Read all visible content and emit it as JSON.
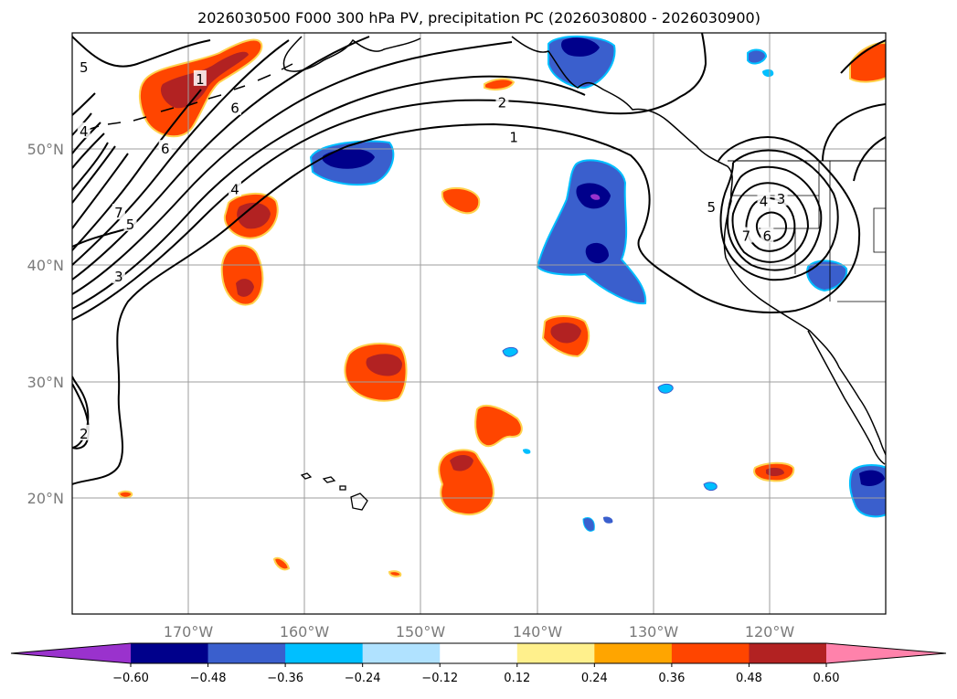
{
  "title": "2026030500 F000 300 hPa PV, precipitation PC (2026030800 - 2026030900)",
  "map": {
    "lat_labels": [
      "50°N",
      "40°N",
      "30°N",
      "20°N"
    ],
    "lon_labels": [
      "170°W",
      "160°W",
      "150°W",
      "140°W",
      "130°W",
      "120°W"
    ],
    "lon_range": [
      -180,
      -110
    ],
    "lat_range": [
      10,
      60
    ]
  },
  "colorbar": {
    "tick_labels": [
      "−0.60",
      "−0.48",
      "−0.36",
      "−0.24",
      "−0.12",
      "0.12",
      "0.24",
      "0.36",
      "0.48",
      "0.60"
    ],
    "colors": [
      "#9a32cd",
      "#00008b",
      "#3a5fcd",
      "#00bfff",
      "#b0e2ff",
      "#ffffff",
      "#fff08c",
      "#ffa500",
      "#ff4500",
      "#b22222",
      "#ff82ab"
    ]
  },
  "contour_labels": [
    {
      "text": "1",
      "lon": -142,
      "lat": 51
    },
    {
      "text": "2",
      "lon": -143,
      "lat": 54
    },
    {
      "text": "1",
      "lon": -169,
      "lat": 56
    },
    {
      "text": "6",
      "lon": -166,
      "lat": 53.5
    },
    {
      "text": "6",
      "lon": -172,
      "lat": 50
    },
    {
      "text": "5",
      "lon": -179,
      "lat": 57
    },
    {
      "text": "4",
      "lon": -179,
      "lat": 51.5
    },
    {
      "text": "4",
      "lon": -166,
      "lat": 46.5
    },
    {
      "text": "7",
      "lon": -176,
      "lat": 44.5
    },
    {
      "text": "5",
      "lon": -175,
      "lat": 43.5
    },
    {
      "text": "3",
      "lon": -176,
      "lat": 39
    },
    {
      "text": "2",
      "lon": -179,
      "lat": 25.5
    },
    {
      "text": "5",
      "lon": -125,
      "lat": 45
    },
    {
      "text": "4",
      "lon": -120.5,
      "lat": 45.5
    },
    {
      "text": "3",
      "lon": -119,
      "lat": 45.7
    },
    {
      "text": "7",
      "lon": -122,
      "lat": 42.5
    },
    {
      "text": "6",
      "lon": -120.2,
      "lat": 42.5
    }
  ]
}
